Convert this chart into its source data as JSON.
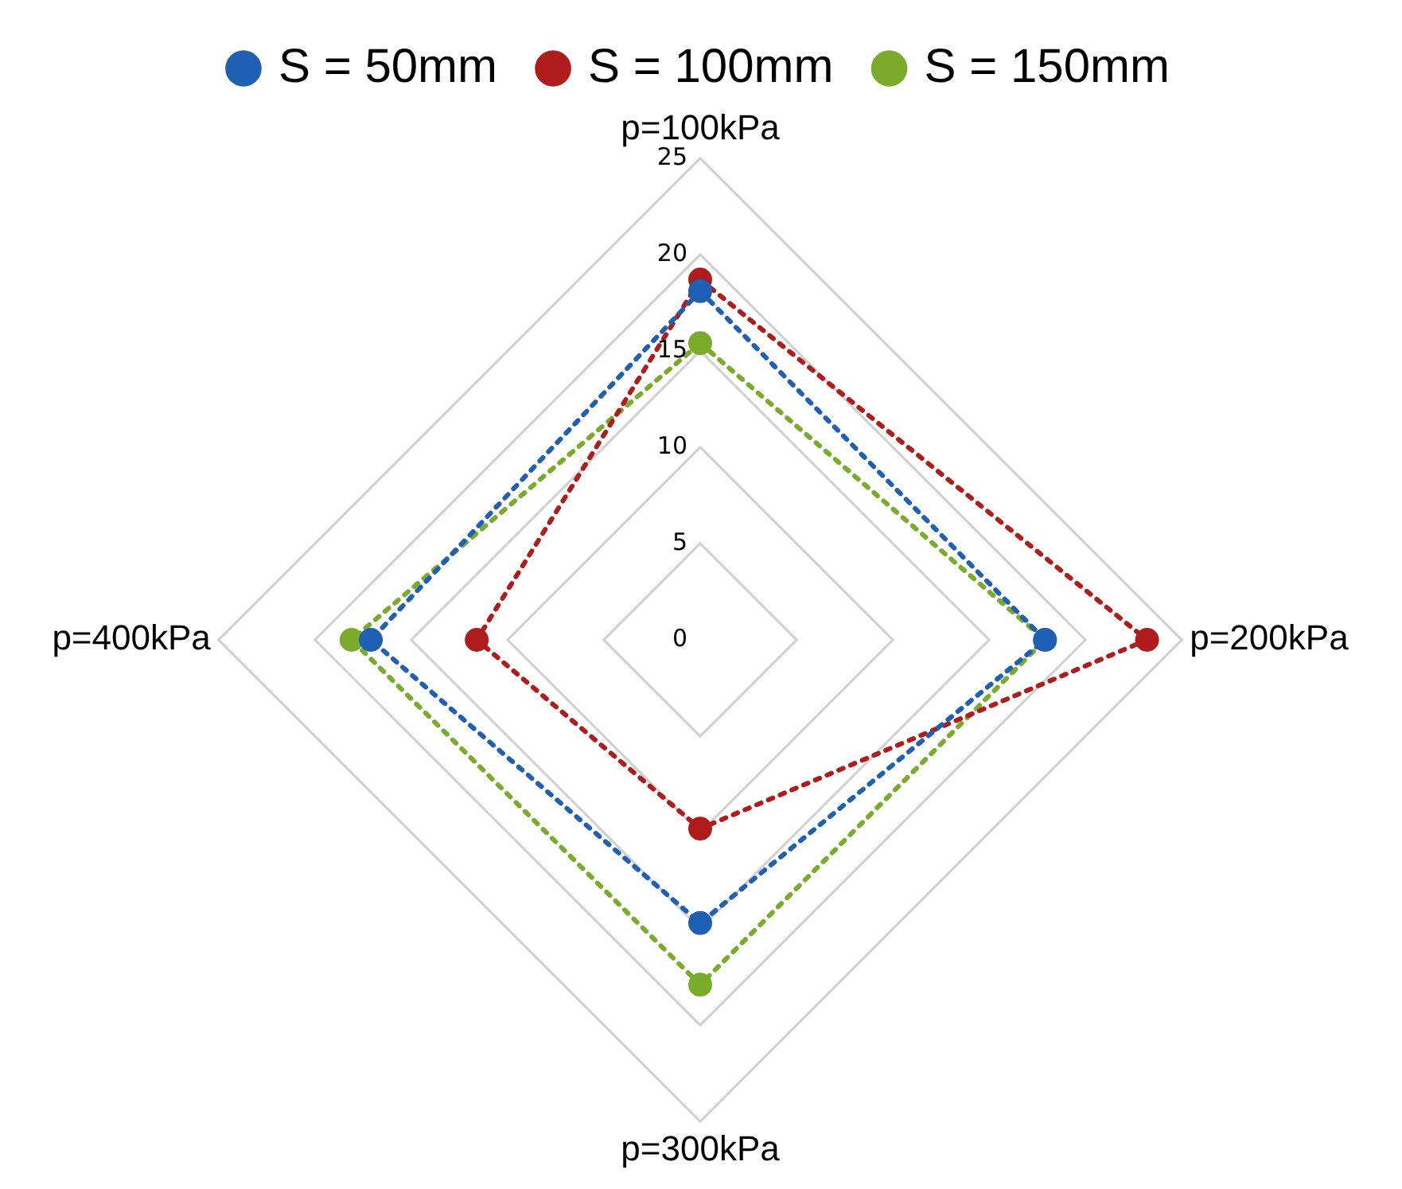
{
  "chart_data": {
    "type": "radar",
    "categories": [
      "p=100kPa",
      "p=200kPa",
      "p=300kPa",
      "p=400kPa"
    ],
    "series": [
      {
        "name": "S = 50mm",
        "color": "#1f5fb4",
        "values": [
          18.1,
          17.9,
          14.7,
          17.1
        ]
      },
      {
        "name": "S = 100mm",
        "color": "#b01c1c",
        "values": [
          18.7,
          23.2,
          9.8,
          11.6
        ]
      },
      {
        "name": "S = 150mm",
        "color": "#7aab2a",
        "values": [
          15.4,
          17.9,
          17.9,
          18.1
        ]
      }
    ],
    "ylim": [
      0,
      25
    ],
    "yticks": [
      0,
      5,
      10,
      15,
      20,
      25
    ],
    "grid": true,
    "legend": "top",
    "marker": "circle",
    "line_style": "dotted"
  }
}
